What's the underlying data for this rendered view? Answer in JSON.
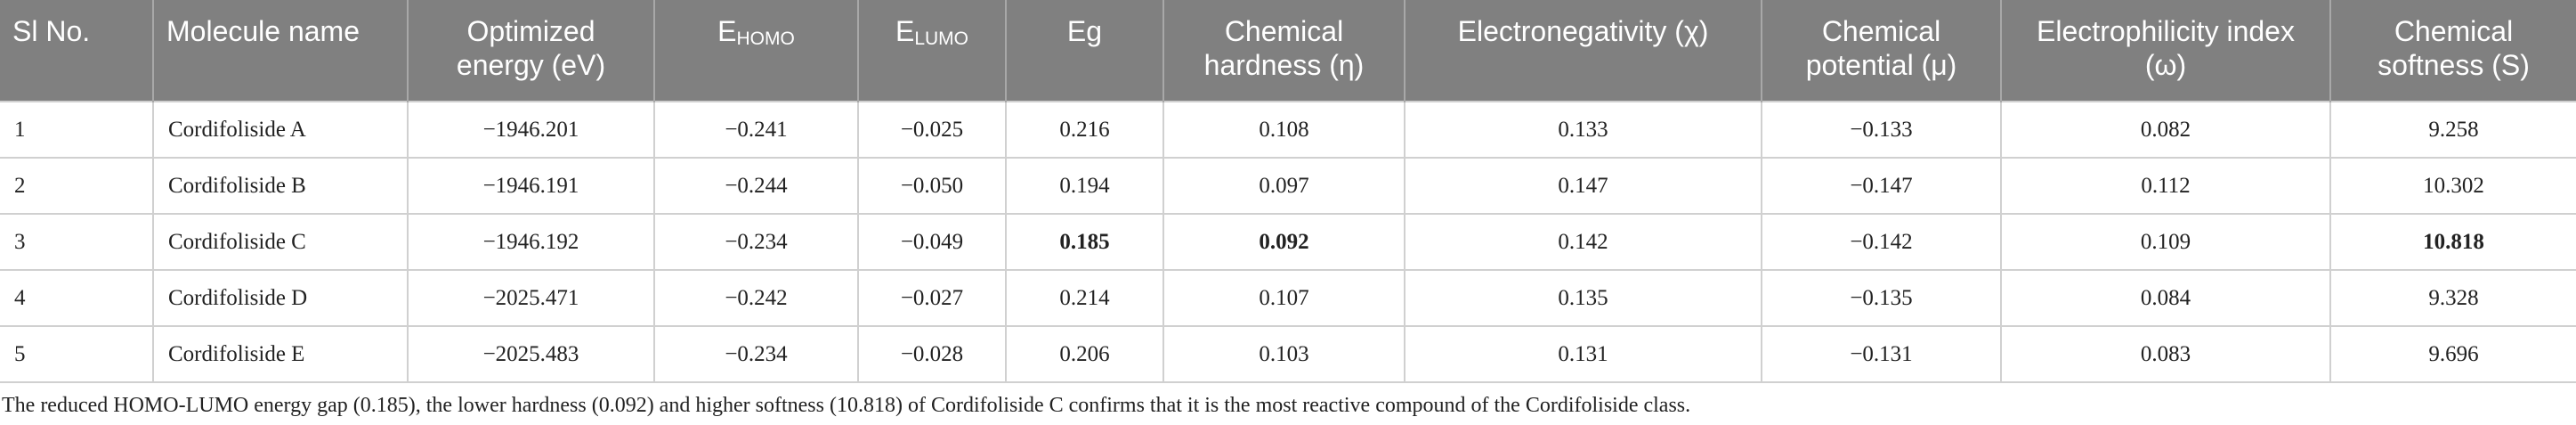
{
  "table": {
    "headers": [
      "Sl No.",
      "Molecule name",
      "Optimized energy (eV)",
      {
        "text": "E",
        "sub": "HOMO"
      },
      {
        "text": "E",
        "sub": "LUMO"
      },
      "Eg",
      "Chemical hardness (η)",
      "Electronegativity (χ)",
      "Chemical potential (μ)",
      "Electrophilicity index (ω)",
      "Chemical softness (S)"
    ],
    "rows": [
      [
        "1",
        "Cordifoliside A",
        "−1946.201",
        "−0.241",
        "−0.025",
        "0.216",
        "0.108",
        "0.133",
        "−0.133",
        "0.082",
        "9.258"
      ],
      [
        "2",
        "Cordifoliside B",
        "−1946.191",
        "−0.244",
        "−0.050",
        "0.194",
        "0.097",
        "0.147",
        "−0.147",
        "0.112",
        "10.302"
      ],
      [
        "3",
        "Cordifoliside C",
        "−1946.192",
        "−0.234",
        "−0.049",
        "0.185",
        "0.092",
        "0.142",
        "−0.142",
        "0.109",
        "10.818"
      ],
      [
        "4",
        "Cordifoliside D",
        "−2025.471",
        "−0.242",
        "−0.027",
        "0.214",
        "0.107",
        "0.135",
        "−0.135",
        "0.084",
        "9.328"
      ],
      [
        "5",
        "Cordifoliside E",
        "−2025.483",
        "−0.234",
        "−0.028",
        "0.206",
        "0.103",
        "0.131",
        "−0.131",
        "0.083",
        "9.696"
      ]
    ],
    "footnote": "The reduced HOMO-LUMO energy gap (0.185), the lower hardness (0.092) and higher softness (10.818) of Cordifoliside C confirms that it is the most reactive compound of the Cordifoliside class."
  }
}
